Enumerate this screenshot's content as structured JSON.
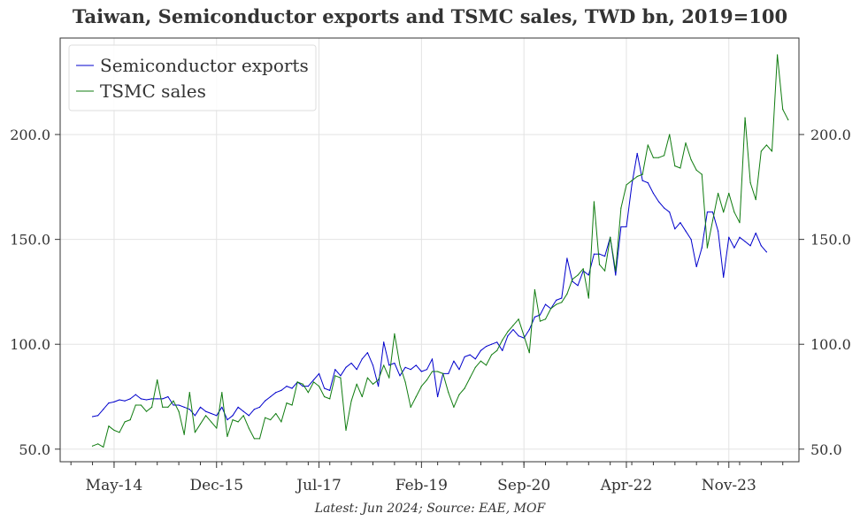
{
  "chart_data": {
    "type": "line",
    "title": "Taiwan, Semiconductor exports and TSMC sales, TWD bn, 2019=100",
    "footnote": "Latest: Jun 2024; Source: EAE, MOF",
    "xlabel": "",
    "ylabel": "",
    "x_ticks": [
      "May-14",
      "Dec-15",
      "Jul-17",
      "Feb-19",
      "Sep-20",
      "Apr-22",
      "Nov-23"
    ],
    "y_ticks": [
      "50.0",
      "100.0",
      "150.0",
      "200.0"
    ],
    "ylim": [
      44,
      246
    ],
    "xlim": [
      "2013-07",
      "2024-12"
    ],
    "grid": true,
    "legend_position": "top-left",
    "colors": {
      "semiconductor_exports": "#0000cc",
      "tsmc_sales": "#107c10",
      "grid": "#e3e3e3",
      "axis": "#333333"
    },
    "series": [
      {
        "name": "Semiconductor exports",
        "color": "#0000cc",
        "points": [
          [
            "2014-01",
            65.5
          ],
          [
            "2014-02",
            66
          ],
          [
            "2014-03",
            69
          ],
          [
            "2014-04",
            72
          ],
          [
            "2014-05",
            72.5
          ],
          [
            "2014-06",
            73.5
          ],
          [
            "2014-07",
            73
          ],
          [
            "2014-08",
            74
          ],
          [
            "2014-09",
            76
          ],
          [
            "2014-10",
            74
          ],
          [
            "2014-11",
            73.5
          ],
          [
            "2014-12",
            74
          ],
          [
            "2015-01",
            74
          ],
          [
            "2015-02",
            74
          ],
          [
            "2015-03",
            75
          ],
          [
            "2015-04",
            71
          ],
          [
            "2015-05",
            71
          ],
          [
            "2015-06",
            70
          ],
          [
            "2015-07",
            69
          ],
          [
            "2015-08",
            66
          ],
          [
            "2015-09",
            70
          ],
          [
            "2015-10",
            68
          ],
          [
            "2015-11",
            67
          ],
          [
            "2015-12",
            66
          ],
          [
            "2016-01",
            70
          ],
          [
            "2016-02",
            64
          ],
          [
            "2016-03",
            66
          ],
          [
            "2016-04",
            70
          ],
          [
            "2016-05",
            68
          ],
          [
            "2016-06",
            66
          ],
          [
            "2016-07",
            69
          ],
          [
            "2016-08",
            70
          ],
          [
            "2016-09",
            73
          ],
          [
            "2016-10",
            75
          ],
          [
            "2016-11",
            77
          ],
          [
            "2016-12",
            78
          ],
          [
            "2017-01",
            80
          ],
          [
            "2017-02",
            79
          ],
          [
            "2017-03",
            82
          ],
          [
            "2017-04",
            80
          ],
          [
            "2017-05",
            80
          ],
          [
            "2017-06",
            83
          ],
          [
            "2017-07",
            86
          ],
          [
            "2017-08",
            79
          ],
          [
            "2017-09",
            78
          ],
          [
            "2017-10",
            88
          ],
          [
            "2017-11",
            85
          ],
          [
            "2017-12",
            89
          ],
          [
            "2018-01",
            91
          ],
          [
            "2018-02",
            88
          ],
          [
            "2018-03",
            93
          ],
          [
            "2018-04",
            96
          ],
          [
            "2018-05",
            90
          ],
          [
            "2018-06",
            80
          ],
          [
            "2018-07",
            101
          ],
          [
            "2018-08",
            90
          ],
          [
            "2018-09",
            91
          ],
          [
            "2018-10",
            85
          ],
          [
            "2018-11",
            89
          ],
          [
            "2018-12",
            88
          ],
          [
            "2019-01",
            90
          ],
          [
            "2019-02",
            87
          ],
          [
            "2019-03",
            88
          ],
          [
            "2019-04",
            93
          ],
          [
            "2019-05",
            75
          ],
          [
            "2019-06",
            86
          ],
          [
            "2019-07",
            86
          ],
          [
            "2019-08",
            92
          ],
          [
            "2019-09",
            88
          ],
          [
            "2019-10",
            94
          ],
          [
            "2019-11",
            95
          ],
          [
            "2019-12",
            93
          ],
          [
            "2020-01",
            97
          ],
          [
            "2020-02",
            99
          ],
          [
            "2020-03",
            100
          ],
          [
            "2020-04",
            101
          ],
          [
            "2020-05",
            97
          ],
          [
            "2020-06",
            104
          ],
          [
            "2020-07",
            107
          ],
          [
            "2020-08",
            104
          ],
          [
            "2020-09",
            103
          ],
          [
            "2020-10",
            107
          ],
          [
            "2020-11",
            113
          ],
          [
            "2020-12",
            114
          ],
          [
            "2021-01",
            119
          ],
          [
            "2021-02",
            117
          ],
          [
            "2021-03",
            121
          ],
          [
            "2021-04",
            122
          ],
          [
            "2021-05",
            141
          ],
          [
            "2021-06",
            130
          ],
          [
            "2021-07",
            128
          ],
          [
            "2021-08",
            135
          ],
          [
            "2021-09",
            133
          ],
          [
            "2021-10",
            143
          ],
          [
            "2021-11",
            143
          ],
          [
            "2021-12",
            142
          ],
          [
            "2022-01",
            151
          ],
          [
            "2022-02",
            133
          ],
          [
            "2022-03",
            156
          ],
          [
            "2022-04",
            156
          ],
          [
            "2022-05",
            176
          ],
          [
            "2022-06",
            191
          ],
          [
            "2022-07",
            178
          ],
          [
            "2022-08",
            177
          ],
          [
            "2022-09",
            172
          ],
          [
            "2022-10",
            168
          ],
          [
            "2022-11",
            165
          ],
          [
            "2022-12",
            163
          ],
          [
            "2023-01",
            155
          ],
          [
            "2023-02",
            158
          ],
          [
            "2023-03",
            154
          ],
          [
            "2023-04",
            150
          ],
          [
            "2023-05",
            137
          ],
          [
            "2023-06",
            146
          ],
          [
            "2023-07",
            163
          ],
          [
            "2023-08",
            163
          ],
          [
            "2023-09",
            154
          ],
          [
            "2023-10",
            132
          ],
          [
            "2023-11",
            151
          ],
          [
            "2023-12",
            146
          ],
          [
            "2024-01",
            151
          ],
          [
            "2024-02",
            149
          ],
          [
            "2024-03",
            147
          ],
          [
            "2024-04",
            153
          ],
          [
            "2024-05",
            147
          ],
          [
            "2024-06",
            144
          ]
        ]
      },
      {
        "name": "TSMC sales",
        "color": "#107c10",
        "points": [
          [
            "2014-01",
            51.5
          ],
          [
            "2014-02",
            52.5
          ],
          [
            "2014-03",
            51
          ],
          [
            "2014-04",
            61
          ],
          [
            "2014-05",
            59
          ],
          [
            "2014-06",
            58
          ],
          [
            "2014-07",
            63
          ],
          [
            "2014-08",
            64
          ],
          [
            "2014-09",
            71
          ],
          [
            "2014-10",
            71
          ],
          [
            "2014-11",
            68
          ],
          [
            "2014-12",
            70
          ],
          [
            "2015-01",
            83
          ],
          [
            "2015-02",
            70
          ],
          [
            "2015-03",
            70
          ],
          [
            "2015-04",
            73
          ],
          [
            "2015-05",
            68
          ],
          [
            "2015-06",
            57
          ],
          [
            "2015-07",
            77
          ],
          [
            "2015-08",
            58
          ],
          [
            "2015-09",
            62
          ],
          [
            "2015-10",
            66
          ],
          [
            "2015-11",
            63
          ],
          [
            "2015-12",
            60
          ],
          [
            "2016-01",
            77
          ],
          [
            "2016-02",
            56
          ],
          [
            "2016-03",
            64
          ],
          [
            "2016-04",
            63
          ],
          [
            "2016-05",
            66
          ],
          [
            "2016-06",
            60
          ],
          [
            "2016-07",
            55
          ],
          [
            "2016-08",
            55
          ],
          [
            "2016-09",
            65
          ],
          [
            "2016-10",
            64
          ],
          [
            "2016-11",
            67
          ],
          [
            "2016-12",
            63
          ],
          [
            "2017-01",
            72
          ],
          [
            "2017-02",
            71
          ],
          [
            "2017-03",
            82
          ],
          [
            "2017-04",
            81
          ],
          [
            "2017-05",
            77
          ],
          [
            "2017-06",
            82
          ],
          [
            "2017-07",
            80
          ],
          [
            "2017-08",
            75
          ],
          [
            "2017-09",
            74
          ],
          [
            "2017-10",
            85
          ],
          [
            "2017-11",
            84
          ],
          [
            "2017-12",
            59
          ],
          [
            "2018-01",
            73
          ],
          [
            "2018-02",
            81
          ],
          [
            "2018-03",
            75
          ],
          [
            "2018-04",
            84
          ],
          [
            "2018-05",
            81
          ],
          [
            "2018-06",
            83
          ],
          [
            "2018-07",
            90
          ],
          [
            "2018-08",
            84
          ],
          [
            "2018-09",
            105
          ],
          [
            "2018-10",
            90
          ],
          [
            "2018-11",
            82
          ],
          [
            "2018-12",
            70
          ],
          [
            "2019-01",
            75
          ],
          [
            "2019-02",
            80
          ],
          [
            "2019-03",
            83
          ],
          [
            "2019-04",
            87
          ],
          [
            "2019-05",
            87
          ],
          [
            "2019-06",
            86
          ],
          [
            "2019-07",
            77
          ],
          [
            "2019-08",
            70
          ],
          [
            "2019-09",
            76
          ],
          [
            "2019-10",
            79
          ],
          [
            "2019-11",
            84
          ],
          [
            "2019-12",
            89
          ],
          [
            "2020-01",
            92
          ],
          [
            "2020-02",
            90
          ],
          [
            "2020-03",
            95
          ],
          [
            "2020-04",
            97
          ],
          [
            "2020-05",
            102
          ],
          [
            "2020-06",
            106
          ],
          [
            "2020-07",
            109
          ],
          [
            "2020-08",
            112
          ],
          [
            "2020-09",
            104
          ],
          [
            "2020-10",
            96
          ],
          [
            "2020-11",
            126
          ],
          [
            "2020-12",
            111
          ],
          [
            "2021-01",
            112
          ],
          [
            "2021-02",
            117
          ],
          [
            "2021-03",
            119
          ],
          [
            "2021-04",
            120
          ],
          [
            "2021-05",
            124
          ],
          [
            "2021-06",
            131
          ],
          [
            "2021-07",
            133
          ],
          [
            "2021-08",
            136
          ],
          [
            "2021-09",
            122
          ],
          [
            "2021-10",
            168
          ],
          [
            "2021-11",
            138
          ],
          [
            "2021-12",
            135
          ],
          [
            "2022-01",
            151
          ],
          [
            "2022-02",
            135
          ],
          [
            "2022-03",
            165
          ],
          [
            "2022-04",
            176
          ],
          [
            "2022-05",
            178
          ],
          [
            "2022-06",
            180
          ],
          [
            "2022-07",
            181
          ],
          [
            "2022-08",
            195
          ],
          [
            "2022-09",
            189
          ],
          [
            "2022-10",
            189
          ],
          [
            "2022-11",
            190
          ],
          [
            "2022-12",
            200
          ],
          [
            "2023-01",
            185
          ],
          [
            "2023-02",
            184
          ],
          [
            "2023-03",
            196
          ],
          [
            "2023-04",
            188
          ],
          [
            "2023-05",
            183
          ],
          [
            "2023-06",
            181
          ],
          [
            "2023-07",
            146
          ],
          [
            "2023-08",
            159
          ],
          [
            "2023-09",
            172
          ],
          [
            "2023-10",
            163
          ],
          [
            "2023-11",
            172
          ],
          [
            "2023-12",
            163
          ],
          [
            "2024-01",
            158
          ],
          [
            "2024-02",
            208
          ],
          [
            "2024-03",
            177
          ],
          [
            "2024-04",
            169
          ],
          [
            "2024-05",
            192
          ],
          [
            "2024-06",
            195
          ],
          [
            "2024-07",
            192
          ],
          [
            "2024-08",
            238
          ],
          [
            "2024-09",
            212
          ],
          [
            "2024-10",
            207
          ]
        ]
      }
    ]
  }
}
